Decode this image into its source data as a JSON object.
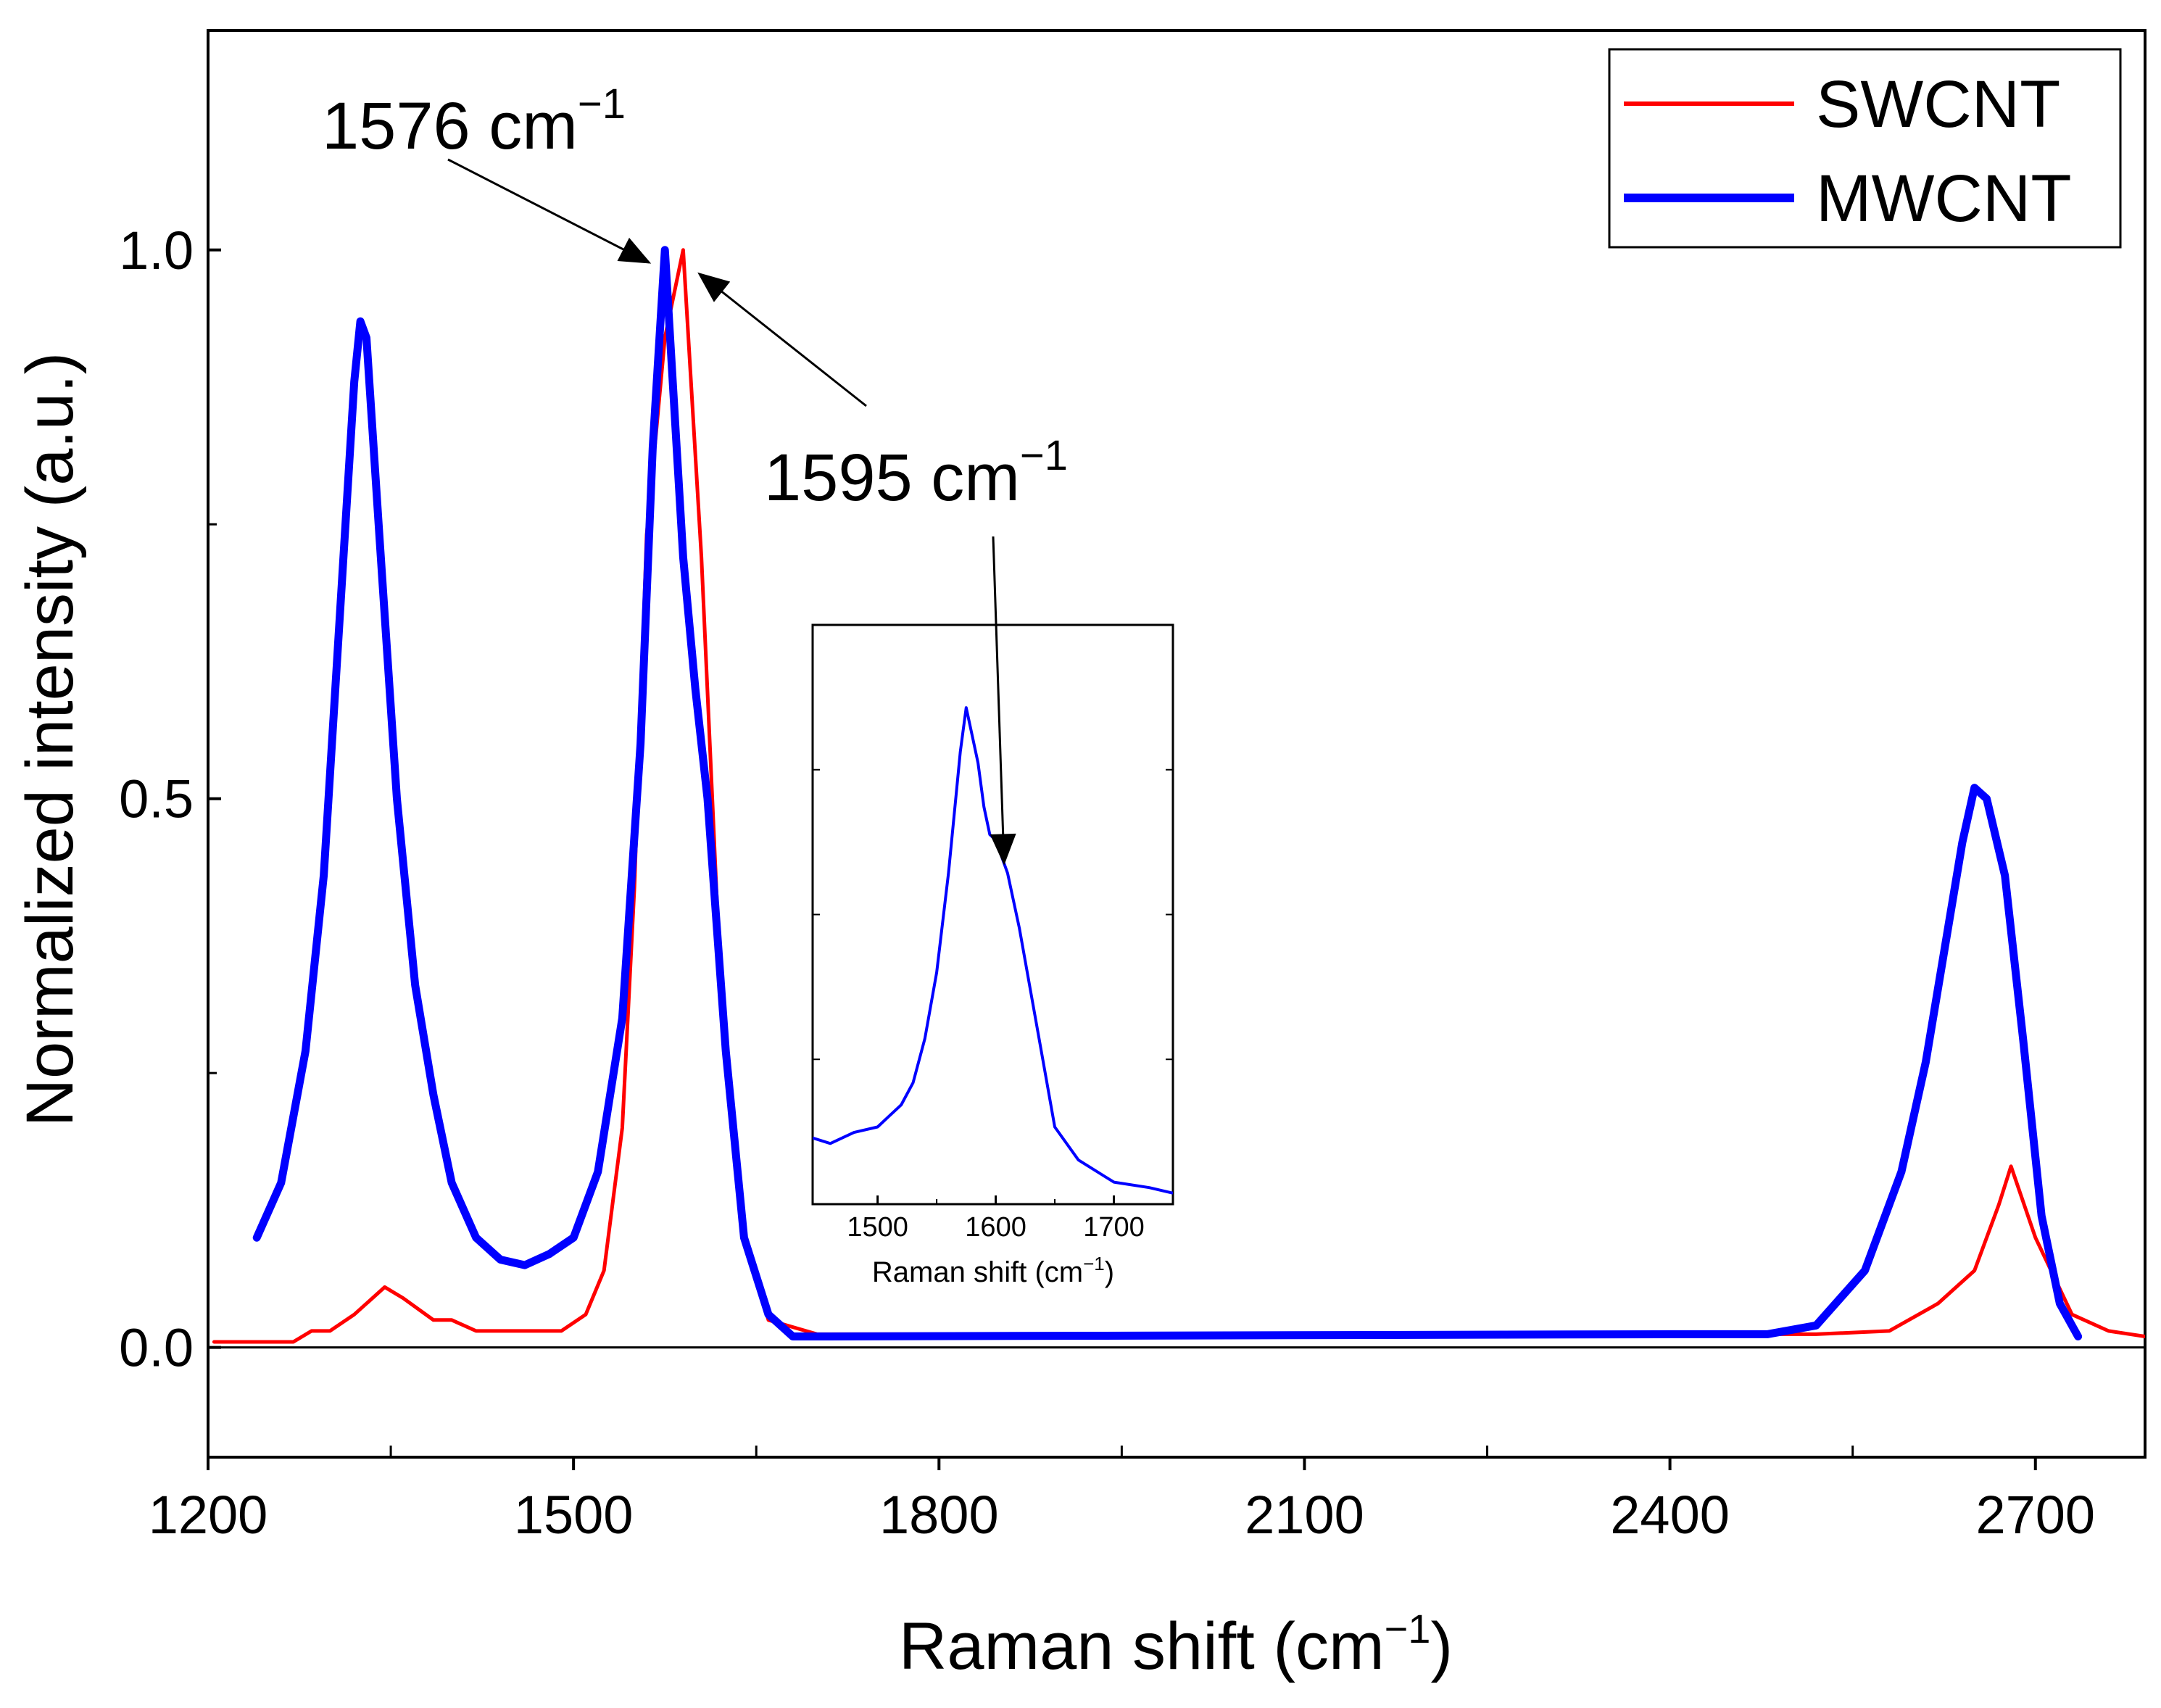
{
  "chart_data": {
    "type": "line",
    "title": "",
    "xlabel": "Raman shift (cm",
    "xlabel_sup": "−1",
    "xlabel_close": ")",
    "ylabel": "Normalized intensity (a.u.)",
    "xlim": [
      1200,
      2790
    ],
    "ylim": [
      -0.1,
      1.2
    ],
    "x_ticks": [
      1200,
      1500,
      1800,
      2100,
      2400,
      2700
    ],
    "x_minor_ticks": [
      1350,
      1650,
      1950,
      2250,
      2550
    ],
    "y_ticks": [
      0.0,
      0.5,
      1.0
    ],
    "y_tick_labels": [
      "0.0",
      "0.5",
      "1.0"
    ],
    "y_minor_ticks": [
      0.25,
      0.75
    ],
    "zero_line": true,
    "grid": false,
    "legend_position": "top-right",
    "series": [
      {
        "name": "SWCNT",
        "color": "#ff0000",
        "x": [
          1205,
          1270,
          1285,
          1300,
          1320,
          1345,
          1360,
          1385,
          1400,
          1420,
          1490,
          1510,
          1525,
          1540,
          1550,
          1560,
          1575,
          1590,
          1605,
          1620,
          1640,
          1660,
          1700,
          2520,
          2580,
          2620,
          2650,
          2670,
          2680,
          2700,
          2730,
          2760,
          2790
        ],
        "y": [
          0.005,
          0.005,
          0.015,
          0.015,
          0.03,
          0.055,
          0.045,
          0.025,
          0.025,
          0.015,
          0.015,
          0.03,
          0.07,
          0.2,
          0.42,
          0.74,
          0.92,
          1.0,
          0.72,
          0.35,
          0.1,
          0.025,
          0.012,
          0.012,
          0.015,
          0.04,
          0.07,
          0.13,
          0.165,
          0.1,
          0.03,
          0.015,
          0.01
        ]
      },
      {
        "name": "MWCNT",
        "color": "#0000ff",
        "x": [
          1240,
          1260,
          1280,
          1295,
          1310,
          1320,
          1325,
          1330,
          1340,
          1355,
          1370,
          1385,
          1400,
          1420,
          1440,
          1460,
          1480,
          1500,
          1520,
          1540,
          1555,
          1565,
          1575,
          1590,
          1600,
          1610,
          1625,
          1640,
          1660,
          1680,
          1700,
          2400,
          2480,
          2520,
          2560,
          2590,
          2610,
          2625,
          2640,
          2650,
          2660,
          2675,
          2690,
          2705,
          2720,
          2735
        ],
        "y": [
          0.1,
          0.15,
          0.27,
          0.43,
          0.7,
          0.88,
          0.935,
          0.92,
          0.75,
          0.5,
          0.33,
          0.23,
          0.15,
          0.1,
          0.08,
          0.075,
          0.085,
          0.1,
          0.16,
          0.3,
          0.55,
          0.82,
          1.0,
          0.72,
          0.6,
          0.5,
          0.27,
          0.1,
          0.03,
          0.01,
          0.01,
          0.012,
          0.012,
          0.02,
          0.07,
          0.16,
          0.26,
          0.36,
          0.46,
          0.51,
          0.5,
          0.43,
          0.28,
          0.12,
          0.04,
          0.01
        ]
      }
    ],
    "annotations": [
      {
        "text": "1576 cm",
        "sup": "−1",
        "x": 1576,
        "y": 1.0
      },
      {
        "text": "1595 cm",
        "sup": "−1",
        "x": 1595,
        "y": 1.0,
        "points_to": "inset shoulder near 1600"
      }
    ],
    "inset": {
      "xlabel": "Raman shift (cm",
      "xlabel_sup": "−1",
      "xlabel_close": ")",
      "xlim": [
        1445,
        1750
      ],
      "ylim": [
        0.0,
        1.05
      ],
      "x_ticks": [
        1500,
        1600,
        1700
      ],
      "x_tick_labels": [
        "1500",
        "1600",
        "1700"
      ],
      "series_name": "MWCNT",
      "x": [
        1445,
        1460,
        1480,
        1500,
        1510,
        1520,
        1530,
        1540,
        1550,
        1560,
        1570,
        1575,
        1580,
        1585,
        1590,
        1595,
        1600,
        1610,
        1620,
        1630,
        1640,
        1650,
        1670,
        1700,
        1730,
        1750
      ],
      "y": [
        0.12,
        0.11,
        0.13,
        0.14,
        0.16,
        0.18,
        0.22,
        0.3,
        0.42,
        0.6,
        0.82,
        0.9,
        0.85,
        0.8,
        0.72,
        0.67,
        0.66,
        0.6,
        0.5,
        0.38,
        0.26,
        0.14,
        0.08,
        0.04,
        0.03,
        0.02
      ]
    }
  }
}
